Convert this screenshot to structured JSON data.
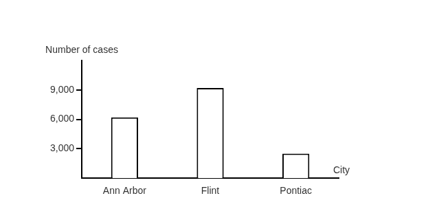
{
  "chart_data": {
    "type": "bar",
    "xlabel": "City",
    "ylabel": "Number of cases",
    "categories": [
      "Ann Arbor",
      "Flint",
      "Pontiac"
    ],
    "values": [
      6200,
      9200,
      2500
    ],
    "color": "#000000",
    "ylim": [
      0,
      12000
    ],
    "yticks": [
      {
        "value": 3000,
        "label": "3,000"
      },
      {
        "value": 6000,
        "label": "6,000"
      },
      {
        "value": 9000,
        "label": "9,000"
      }
    ],
    "grid": false
  }
}
